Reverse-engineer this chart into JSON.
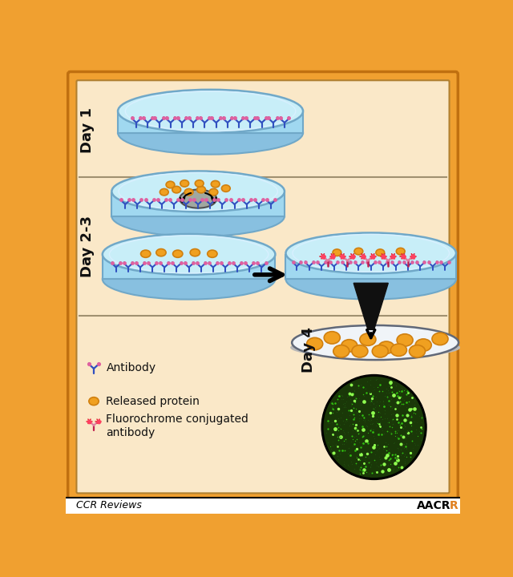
{
  "bg_outer": "#f0a030",
  "panel_bg": "#fae8c8",
  "dish_top_color": "#c8eef8",
  "dish_wall_color": "#a0d8f0",
  "dish_rim_color": "#70a8c8",
  "dish_bottom_color": "#88c0e0",
  "antibody_blue": "#3050c0",
  "antibody_cyan": "#40b8c8",
  "antibody_pink": "#e060a0",
  "protein_color": "#f0a020",
  "protein_outline": "#d08010",
  "fluoro_stem": "#c02050",
  "fluoro_arm": "#e080a0",
  "fluoro_star": "#e02030",
  "green_bg": "#1a3808",
  "green_bright": "#90ff50",
  "green_mid": "#30c010",
  "arrow_color": "#101010",
  "cell_color": "#a0a8a0",
  "cell_outline": "#505050",
  "day1_label": "Day 1",
  "day23_label": "Day 2-3",
  "day4_label": "Day 4",
  "legend_antibody": "Antibody",
  "legend_protein": "Released protein",
  "legend_fluoro": "Fluorochrome conjugated\nantibody",
  "footer_left": "CCR Reviews",
  "title_color": "#101010",
  "footer_bg": "#f0f0f0"
}
